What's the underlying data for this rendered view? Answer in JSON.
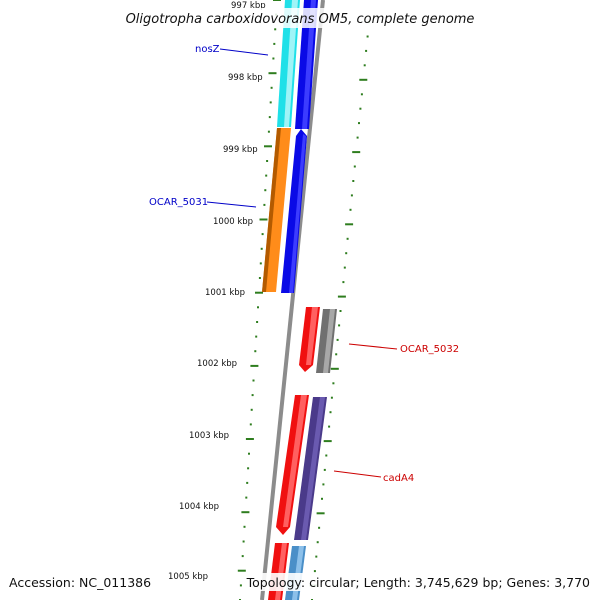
{
  "title": "Oligotropha carboxidovorans OM5, complete genome",
  "accession": "Accession: NC_011386",
  "topology": "Topology: circular; Length: 3,745,629 bp; Genes: 3,770",
  "ticks": [
    "997 kbp",
    "998 kbp",
    "999 kbp",
    "1000 kbp",
    "1001 kbp",
    "1002 kbp",
    "1003 kbp",
    "1004 kbp",
    "1005 kbp"
  ],
  "gene_labels": [
    {
      "name": "nosZ",
      "color": "#0000c8"
    },
    {
      "name": "OCAR_5031",
      "color": "#0000c8"
    },
    {
      "name": "OCAR_5032",
      "color": "#cc0000"
    },
    {
      "name": "cadA4",
      "color": "#cc0000"
    }
  ],
  "colors": {
    "backbone": "#8c8c8c",
    "tick_mark": "#2e7d1e",
    "cyan_gene": "#1fe0e8",
    "blue_gene": "#0a0ae6",
    "orange_gene": "#ff8c1a",
    "red_gene": "#f01010",
    "gray_gene": "#707070",
    "purple_gene": "#4a3a8a",
    "steelblue_gene": "#4a8fc8"
  }
}
